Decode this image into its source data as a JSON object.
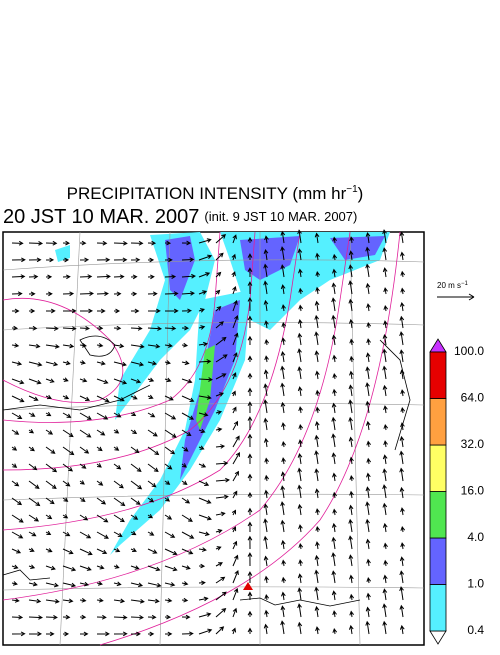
{
  "header": {
    "title": "PRECIPITATION INTENSITY (mm hr",
    "title_exponent": "−1",
    "title_close": ")",
    "time": "20 JST 10 MAR. 2007",
    "init": "(init. 9 JST 10 MAR. 2007)"
  },
  "reference_vector": {
    "label": "20 m s",
    "exponent": "−1"
  },
  "colorbar": {
    "levels": [
      "0.4",
      "1.0",
      "4.0",
      "16.0",
      "32.0",
      "64.0",
      "100.0"
    ],
    "colors": [
      "#55f0ff",
      "#6464ff",
      "#50e650",
      "#ffff64",
      "#ffa040",
      "#e60000"
    ],
    "over_color": "#c832ff",
    "under_color": "#ffffff"
  }
}
